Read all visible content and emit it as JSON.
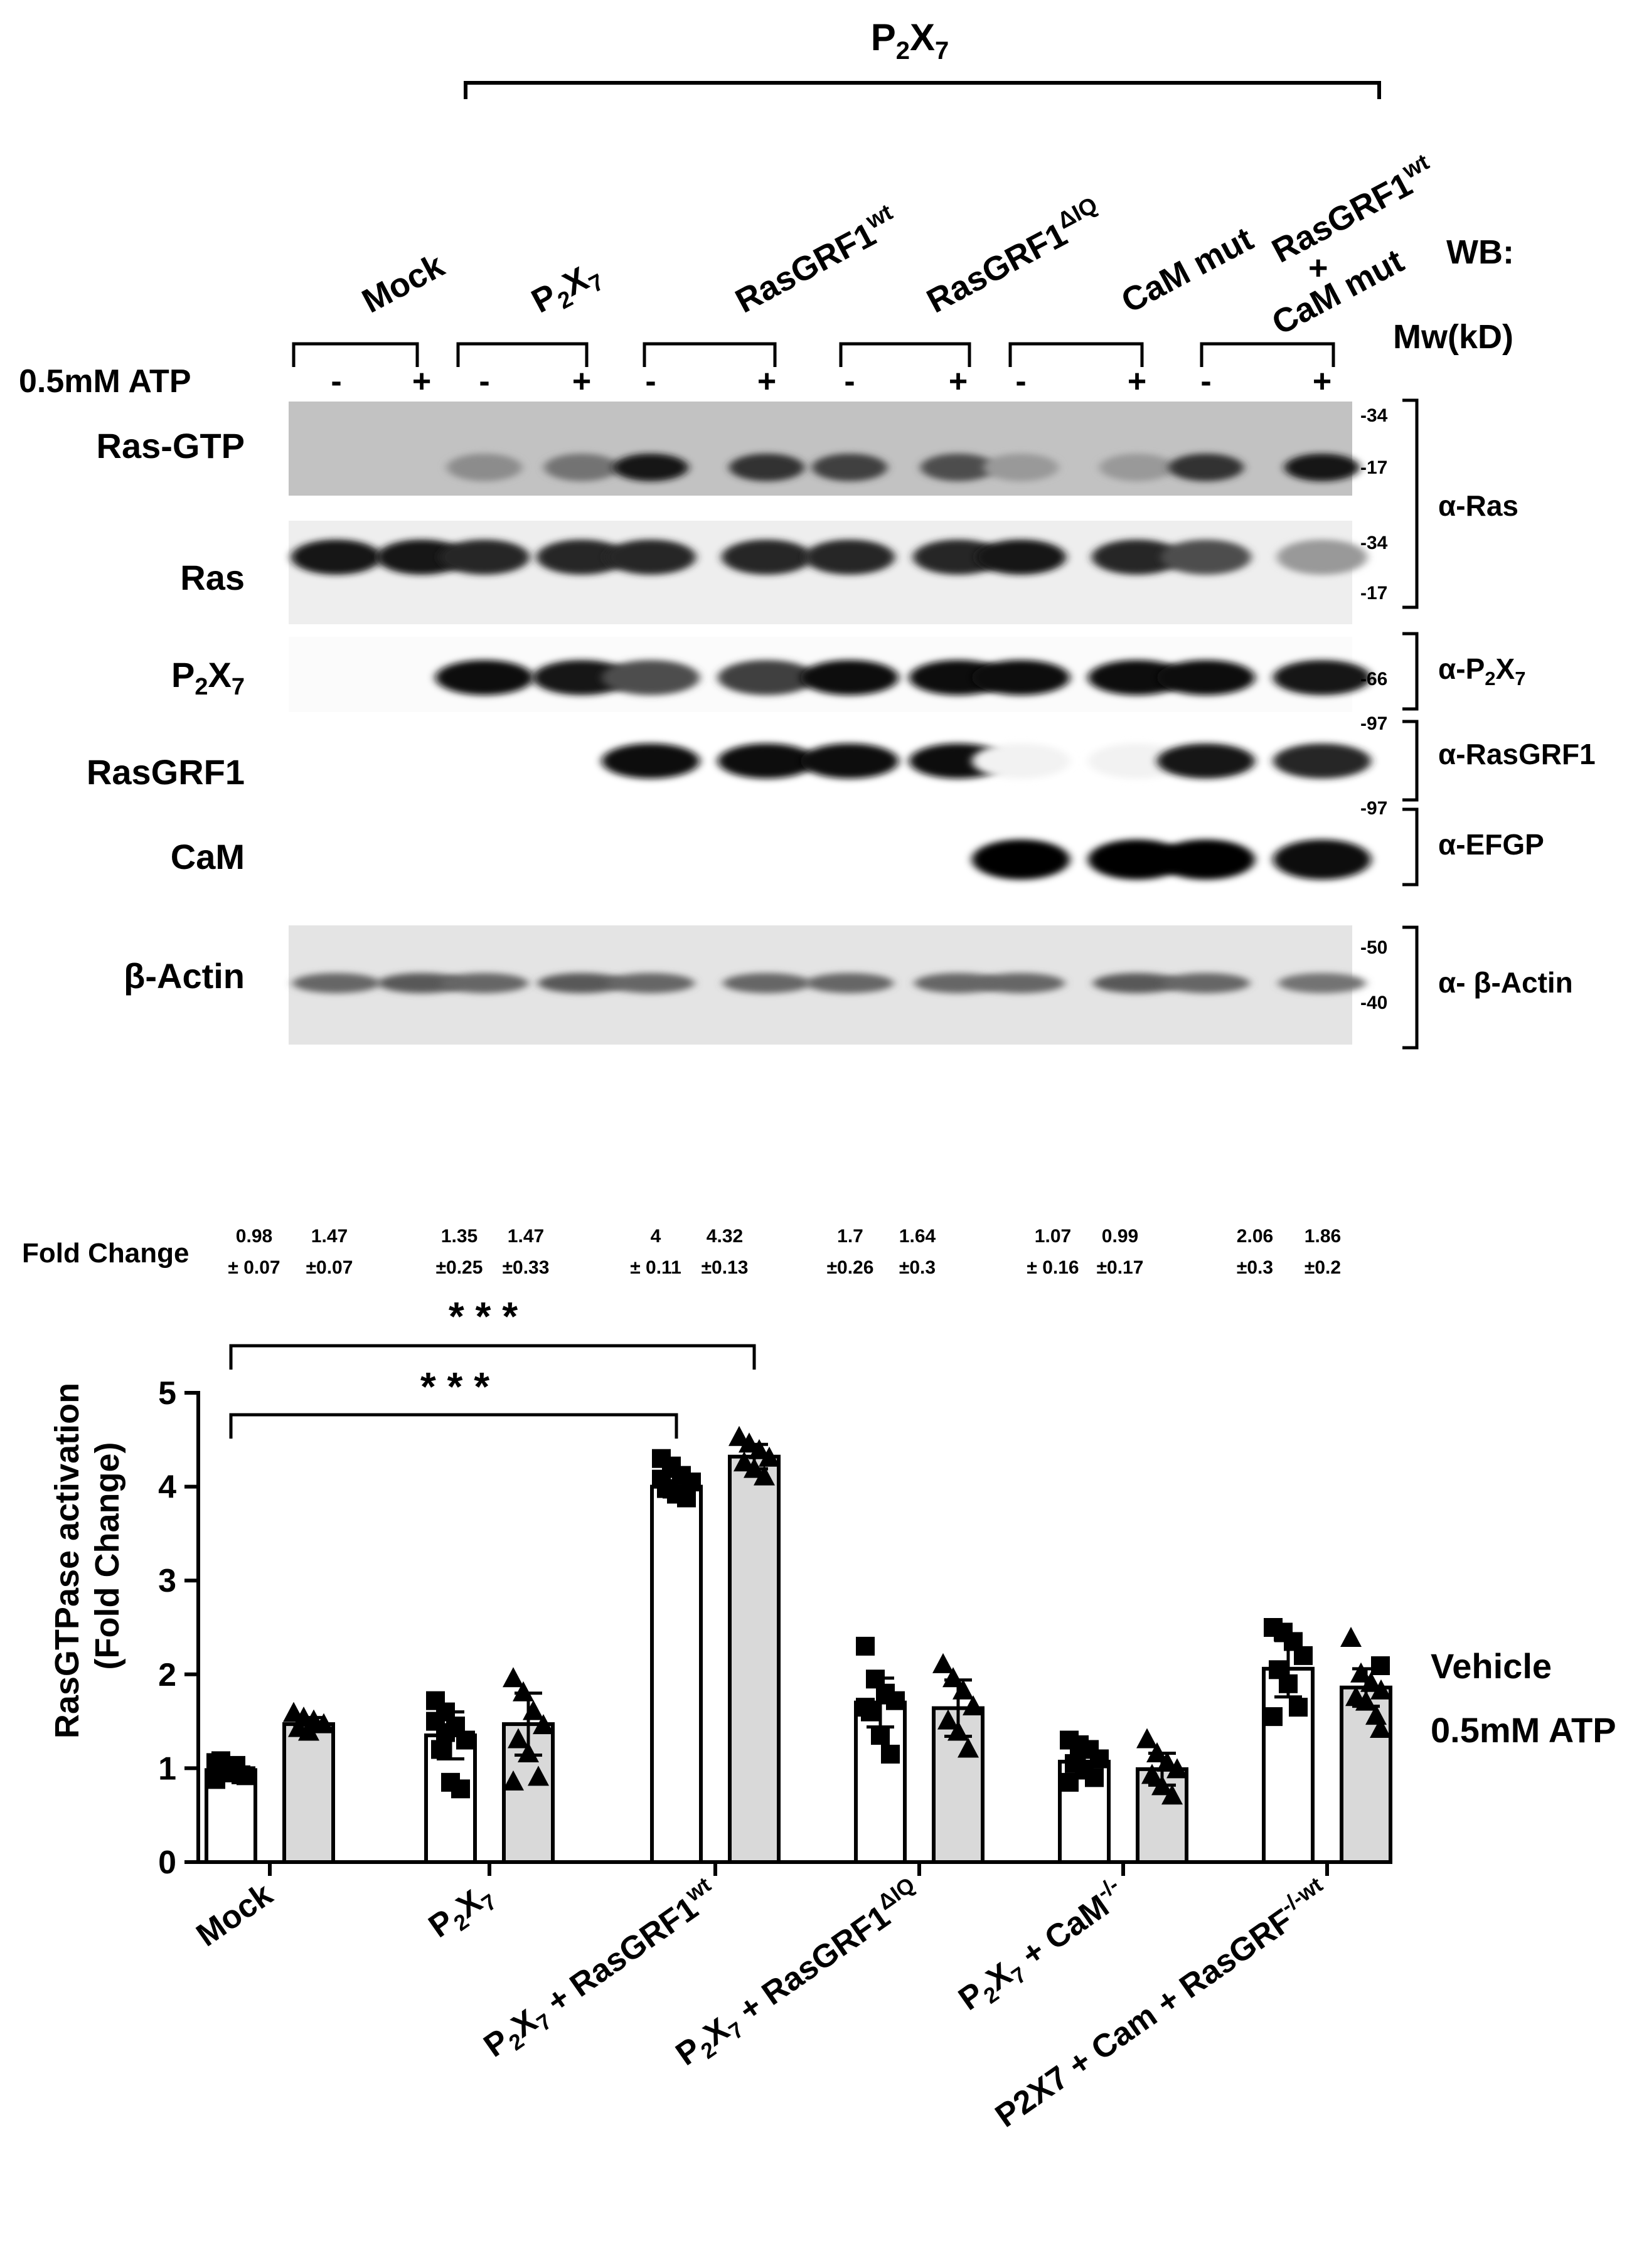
{
  "blot": {
    "group_header": {
      "base": "P",
      "sub": "2",
      "rest": "X",
      "sub2": "7"
    },
    "lanes": [
      {
        "label": "Mock"
      },
      {
        "label": "P",
        "sub": "2",
        "tail": "X",
        "sub2": "7"
      },
      {
        "label": "RasGRF1",
        "sup": "wt"
      },
      {
        "label": "RasGRF1",
        "sup": "ΔIQ"
      },
      {
        "label": "CaM mut"
      },
      {
        "label": "RasGRF1",
        "sup": "wt",
        "line2": "+",
        "line3": "CaM mut"
      }
    ],
    "wb_label": "WB:",
    "mw_label": "Mw(kD)",
    "atp_label": "0.5mM ATP",
    "signs": [
      "-",
      "+",
      "-",
      "+",
      "-",
      "+",
      "-",
      "+",
      "-",
      "+",
      "-",
      "+"
    ],
    "rows": [
      {
        "label": "Ras-GTP"
      },
      {
        "label": "Ras"
      },
      {
        "label": "P",
        "sub": "2",
        "tail": "X",
        "sub2": "7"
      },
      {
        "label": "RasGRF1"
      },
      {
        "label": "CaM"
      },
      {
        "label": "β-Actin"
      }
    ],
    "mw_markers": [
      "-34",
      "-17",
      "-34",
      "-17",
      "-66",
      "-97",
      "-97",
      "-50",
      "-40"
    ],
    "antibodies": [
      {
        "label": "α-Ras"
      },
      {
        "label": "α-P",
        "sub": "2",
        "tail": "X",
        "sub2": "7"
      },
      {
        "label": "α-RasGRF1"
      },
      {
        "label": "α-EFGP"
      },
      {
        "label": "α- β-Actin"
      }
    ],
    "band_intensity": {
      "ras_gtp": [
        0.0,
        0.0,
        0.45,
        0.55,
        0.9,
        0.8,
        0.75,
        0.7,
        0.4,
        0.4,
        0.8,
        0.9
      ],
      "ras": [
        0.9,
        0.9,
        0.85,
        0.85,
        0.85,
        0.85,
        0.85,
        0.85,
        0.9,
        0.85,
        0.7,
        0.4
      ],
      "p2x7": [
        0.0,
        0.0,
        0.95,
        0.9,
        0.7,
        0.75,
        0.95,
        0.95,
        0.95,
        0.95,
        0.95,
        0.9
      ],
      "rasgrf1": [
        0.0,
        0.0,
        0.0,
        0.0,
        0.95,
        0.95,
        0.95,
        0.95,
        0.05,
        0.05,
        0.9,
        0.85
      ],
      "cam": [
        0.0,
        0.0,
        0.0,
        0.0,
        0.0,
        0.0,
        0.0,
        0.0,
        1.0,
        1.0,
        1.0,
        0.95
      ],
      "actin": [
        0.6,
        0.65,
        0.6,
        0.65,
        0.6,
        0.6,
        0.6,
        0.6,
        0.6,
        0.65,
        0.6,
        0.55
      ]
    }
  },
  "fold_change": {
    "label": "Fold Change",
    "values": [
      "0.98",
      "1.47",
      "1.35",
      "1.47",
      "4",
      "4.32",
      "1.7",
      "1.64",
      "1.07",
      "0.99",
      "2.06",
      "1.86"
    ],
    "errors": [
      "± 0.07",
      "±0.07",
      "±0.25",
      "±0.33",
      "± 0.11",
      "±0.13",
      "±0.26",
      "±0.3",
      "± 0.16",
      "±0.17",
      "±0.3",
      "±0.2"
    ]
  },
  "chart_data": {
    "type": "bar",
    "ylabel_line1": "RasGTPase activation",
    "ylabel_line2": "(Fold Change)",
    "ylim": [
      0,
      5
    ],
    "yticks": [
      "0",
      "1",
      "2",
      "3",
      "4",
      "5"
    ],
    "categories": [
      {
        "label": "Mock"
      },
      {
        "label": "P",
        "sub": "2",
        "tail": "X",
        "sub2": "7"
      },
      {
        "label": "P",
        "sub": "2",
        "tail": "X",
        "sub2": "7",
        "tail2": " + RasGRF1",
        "sup": "wt"
      },
      {
        "label": "P",
        "sub": "2",
        "tail": "X",
        "sub2": "7",
        "tail2": " + RasGRF1",
        "sup": "ΔIQ"
      },
      {
        "label": "P",
        "sub": "2",
        "tail": "X",
        "sub2": "7",
        "tail2": " + CaM",
        "sup": "-/-"
      },
      {
        "label": "P2X7 + Cam",
        "sup": "-/-",
        "tail2": " + RasGRF",
        "sup2": "wt"
      }
    ],
    "legend_position": "right",
    "series": [
      {
        "name": "Vehicle",
        "marker": "square",
        "color": "#ffffff",
        "values": [
          0.98,
          1.35,
          4.0,
          1.7,
          1.07,
          2.06
        ],
        "errors": [
          0.07,
          0.25,
          0.11,
          0.26,
          0.16,
          0.3
        ],
        "points": [
          [
            1.06,
            0.95,
            1.03,
            0.92,
            1.08,
            1.0,
            0.93,
            0.88
          ],
          [
            1.72,
            1.6,
            1.45,
            1.3,
            1.2,
            0.85,
            0.78,
            1.5,
            1.38
          ],
          [
            4.3,
            4.22,
            4.12,
            4.05,
            3.98,
            3.92,
            3.88,
            4.08
          ],
          [
            2.3,
            1.95,
            1.8,
            1.72,
            1.6,
            1.35,
            1.15,
            1.65
          ],
          [
            1.3,
            1.25,
            1.2,
            1.1,
            1.05,
            0.98,
            0.9,
            0.85
          ],
          [
            2.5,
            2.45,
            2.35,
            2.2,
            2.05,
            1.9,
            1.65,
            1.55
          ]
        ]
      },
      {
        "name": "0.5mM ATP",
        "marker": "triangle",
        "color": "#d9d9d9",
        "values": [
          1.47,
          1.47,
          4.32,
          1.64,
          0.99,
          1.86
        ],
        "errors": [
          0.07,
          0.33,
          0.13,
          0.3,
          0.17,
          0.2
        ],
        "points": [
          [
            1.58,
            1.53,
            1.5,
            1.46,
            1.42,
            1.38
          ],
          [
            1.95,
            1.8,
            1.6,
            1.45,
            1.3,
            1.15,
            0.9,
            0.85
          ],
          [
            4.52,
            4.45,
            4.38,
            4.3,
            4.25,
            4.18,
            4.1
          ],
          [
            2.1,
            1.95,
            1.82,
            1.65,
            1.5,
            1.38,
            1.2
          ],
          [
            1.3,
            1.15,
            1.05,
            0.98,
            0.92,
            0.8,
            0.7
          ],
          [
            2.38,
            2.0,
            1.9,
            1.82,
            1.75,
            1.7,
            1.55
          ]
        ]
      }
    ],
    "significance": [
      {
        "label": "* * *",
        "from_category": 0,
        "to_category": 2,
        "to_series": 1
      },
      {
        "label": "* * *",
        "from_category": 0,
        "to_category": 2,
        "to_series": 0
      }
    ]
  }
}
